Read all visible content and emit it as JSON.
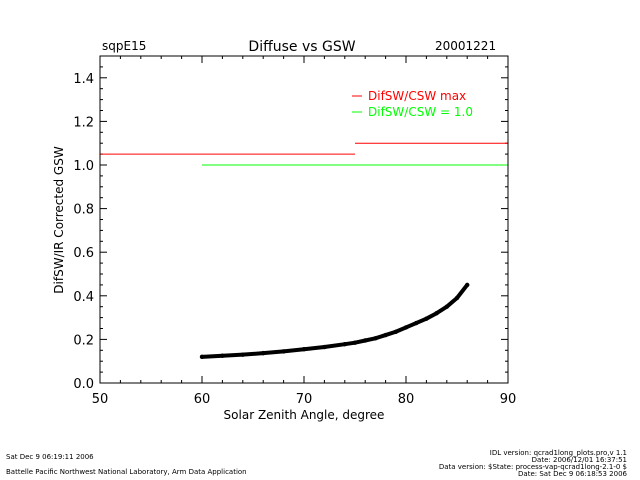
{
  "header": {
    "site": "sqpE15",
    "title": "Diffuse vs GSW",
    "date": "20001221"
  },
  "footer": {
    "left_line1": "Sat Dec  9 06:19:11 2006",
    "left_line2": "Battelle Pacific Northwest National Laboratory, Arm Data Application",
    "right_line1": "IDL version: qcrad1long_plots.pro,v 1.1",
    "right_line2": "Date: 2006/12/01 16:37:51",
    "right_line3": "Data version: $State: process-vap-qcrad1long-2.1-0 $",
    "right_line4": "Date: Sat Dec  9 06:18:53 2006"
  },
  "chart_data": {
    "type": "scatter",
    "title": "Diffuse vs GSW",
    "xlabel": "Solar Zenith Angle, degree",
    "ylabel": "DifSW/IR Corrected GSW",
    "xlim": [
      50,
      90
    ],
    "ylim": [
      0.0,
      1.5
    ],
    "xticks": [
      "50",
      "60",
      "70",
      "80",
      "90"
    ],
    "yticks": [
      "0.0",
      "0.2",
      "0.4",
      "0.6",
      "0.8",
      "1.0",
      "1.2",
      "1.4"
    ],
    "legend_position": "top-right",
    "series": [
      {
        "name": "DifSW/CSW max",
        "color": "#ff0000",
        "kind": "step",
        "segments": [
          {
            "x0": 50,
            "x1": 75,
            "y": 1.05
          },
          {
            "x0": 75,
            "x1": 90,
            "y": 1.1
          }
        ]
      },
      {
        "name": "DifSW/CSW = 1.0",
        "color": "#00ff00",
        "kind": "line",
        "x": [
          60,
          90
        ],
        "y": [
          1.0,
          1.0
        ]
      },
      {
        "name": "",
        "color": "#000000",
        "kind": "scatter",
        "x": [
          60,
          62,
          64,
          66,
          68,
          70,
          72,
          74,
          75,
          76,
          77,
          78,
          79,
          80,
          81,
          82,
          83,
          84,
          85,
          86
        ],
        "y": [
          0.12,
          0.125,
          0.13,
          0.137,
          0.145,
          0.155,
          0.165,
          0.178,
          0.185,
          0.195,
          0.205,
          0.22,
          0.235,
          0.255,
          0.275,
          0.295,
          0.32,
          0.35,
          0.39,
          0.45
        ]
      }
    ]
  }
}
